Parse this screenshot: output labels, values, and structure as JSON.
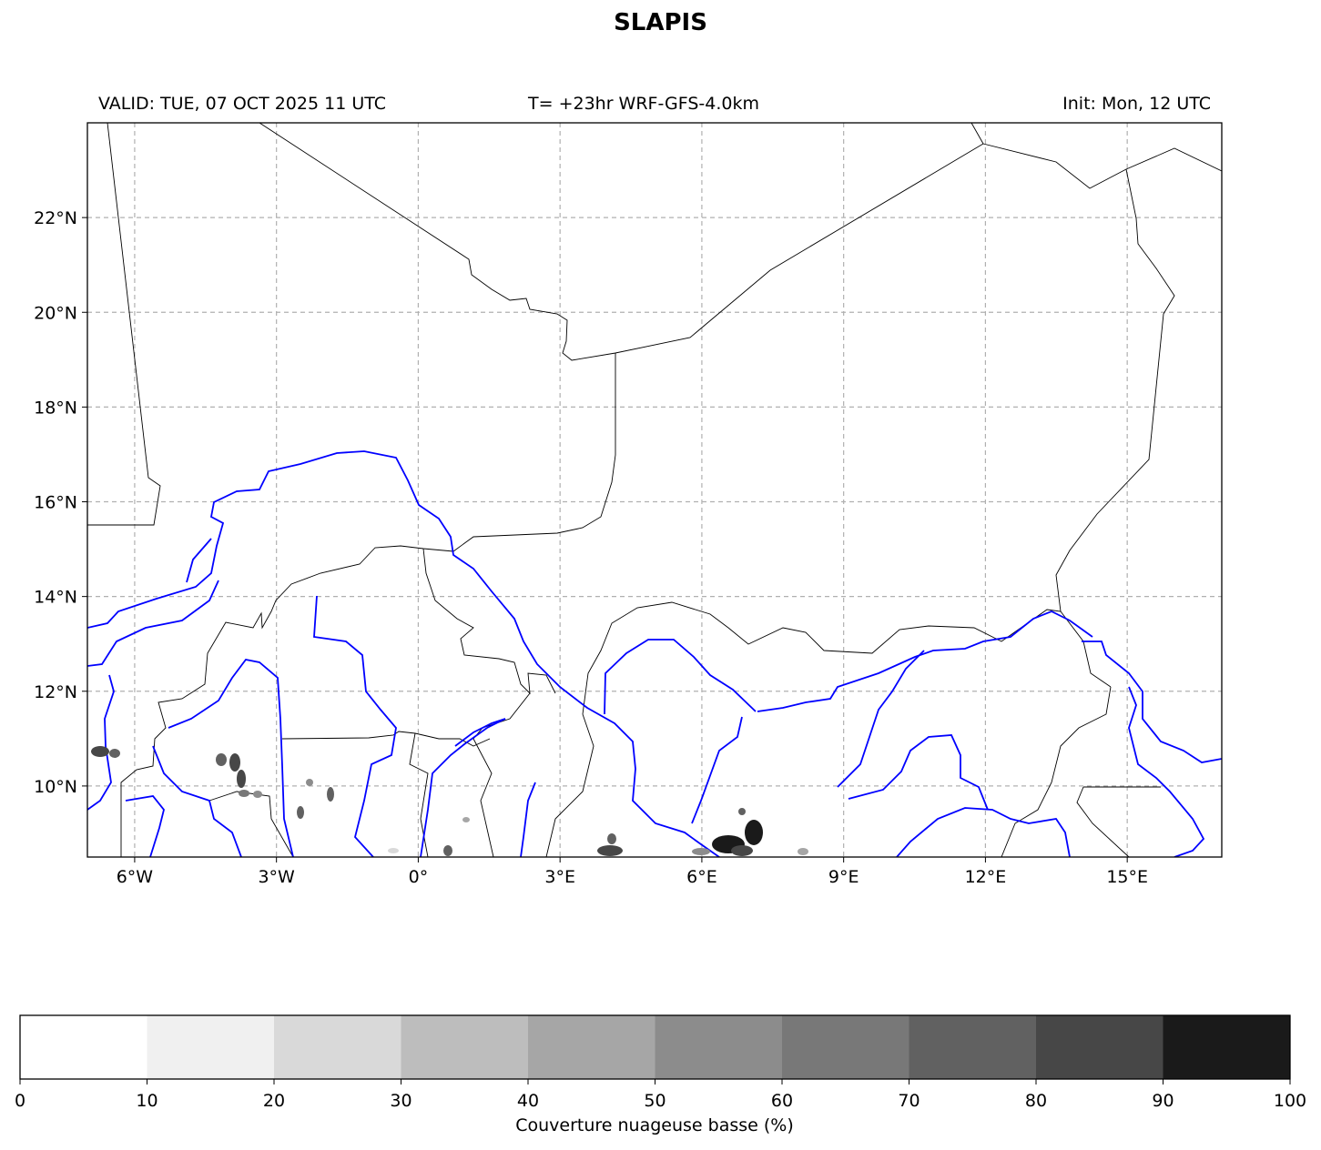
{
  "title": "SLAPIS",
  "header": {
    "valid": "VALID: TUE, 07 OCT 2025 11 UTC",
    "forecast": "T= +23hr WRF-GFS-4.0km",
    "init": "Init: Mon, 12 UTC"
  },
  "map": {
    "lon_range": [
      -7,
      17
    ],
    "lat_range": [
      8.5,
      24
    ],
    "lon_ticks": [
      -6,
      -3,
      0,
      3,
      6,
      9,
      12,
      15
    ],
    "lat_ticks": [
      10,
      12,
      14,
      16,
      18,
      20,
      22
    ],
    "lon_labels": [
      "6°W",
      "3°W",
      "0°",
      "3°E",
      "6°E",
      "9°E",
      "12°E",
      "15°E"
    ],
    "lat_labels": [
      "10°N",
      "12°N",
      "14°N",
      "16°N",
      "18°N",
      "20°N",
      "22°N"
    ],
    "grid": true,
    "colors": {
      "rivers": "#0000ff",
      "borders": "#000000",
      "grid": "#b0b0b0"
    }
  },
  "colorbar": {
    "label": "Couverture nuageuse basse (%)",
    "ticks": [
      "0",
      "10",
      "20",
      "30",
      "40",
      "50",
      "60",
      "70",
      "80",
      "90",
      "100"
    ],
    "colors": [
      "#ffffff",
      "#f0f0f0",
      "#d9d9d9",
      "#bdbdbd",
      "#a6a6a6",
      "#8c8c8c",
      "#787878",
      "#616161",
      "#474747",
      "#1a1a1a"
    ]
  }
}
